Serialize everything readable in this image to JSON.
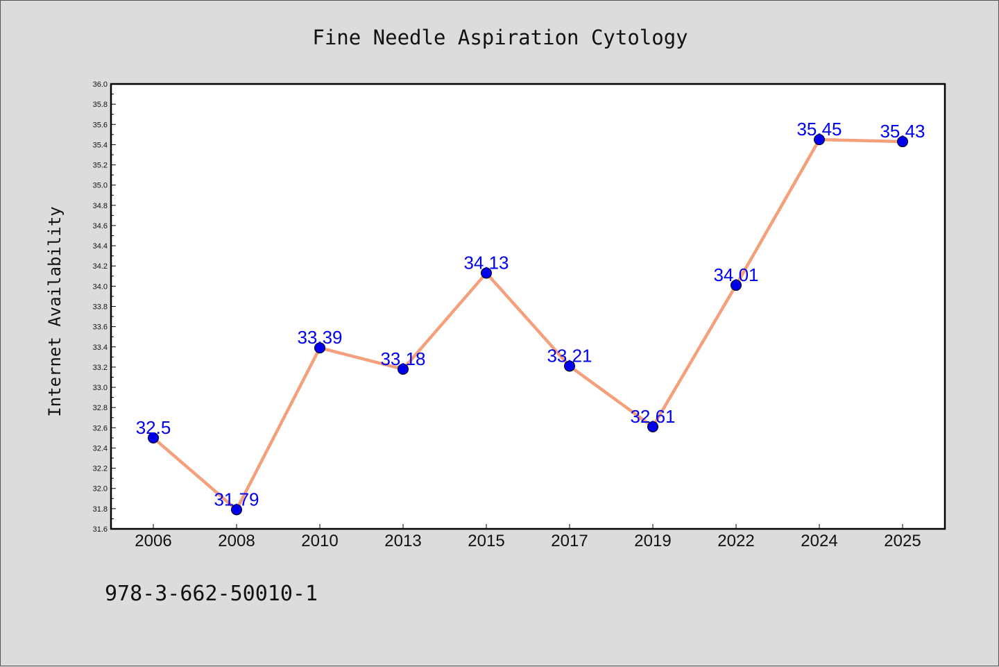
{
  "chart_data": {
    "type": "line",
    "title": "Fine Needle Aspiration Cytology",
    "xlabel": "",
    "ylabel": "Internet Availability",
    "categories": [
      "2006",
      "2008",
      "2010",
      "2013",
      "2015",
      "2017",
      "2019",
      "2022",
      "2024",
      "2025"
    ],
    "values": [
      32.5,
      31.79,
      33.39,
      33.18,
      34.13,
      33.21,
      32.61,
      34.01,
      35.45,
      35.43
    ],
    "data_labels": [
      "32.5",
      "31.79",
      "33.39",
      "33.18",
      "34.13",
      "33.21",
      "32.61",
      "34.01",
      "35.45",
      "35.43"
    ],
    "ylim": [
      31.6,
      36.0
    ],
    "y_major_step": 0.2,
    "y_tick_labels": [
      "31.6",
      "31.8",
      "32.0",
      "32.2",
      "32.4",
      "32.6",
      "32.8",
      "33.0",
      "33.2",
      "33.4",
      "33.6",
      "33.8",
      "34.0",
      "34.2",
      "34.4",
      "34.6",
      "34.8",
      "35.0",
      "35.2",
      "35.4",
      "35.6",
      "35.8",
      "36.0"
    ],
    "grid": false,
    "legend": "none",
    "colors": {
      "line": "#f4a07c",
      "marker": "#0000ee",
      "data_label": "#0000ee",
      "plot_background": "#ffffff",
      "figure_background": "#dcdcdc"
    }
  },
  "footer_note": "978-3-662-50010-1"
}
